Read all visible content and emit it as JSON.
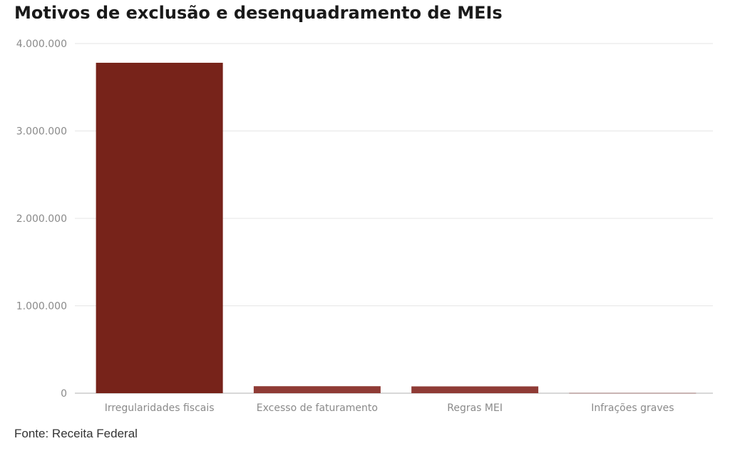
{
  "title": "Motivos de exclusão e desenquadramento de MEIs",
  "source": "Fonte: Receita Federal",
  "colors": {
    "primary": "#77231a",
    "secondary": "#8f3b35",
    "grid": "#e6e6e6",
    "axis": "#cccccc"
  },
  "chart_data": {
    "type": "bar",
    "title": "Motivos de exclusão e desenquadramento de MEIs",
    "xlabel": "",
    "ylabel": "",
    "categories": [
      "Irregularidades fiscais",
      "Excesso de faturamento",
      "Regras MEI",
      "Infrações graves"
    ],
    "values": [
      3780000,
      80000,
      78000,
      2000
    ],
    "ylim": [
      0,
      4000000
    ],
    "yticks": [
      0,
      1000000,
      2000000,
      3000000,
      4000000
    ],
    "ytick_labels": [
      "0",
      "1.000.000",
      "2.000.000",
      "3.000.000",
      "4.000.000"
    ],
    "grid": true,
    "legend": "none"
  }
}
